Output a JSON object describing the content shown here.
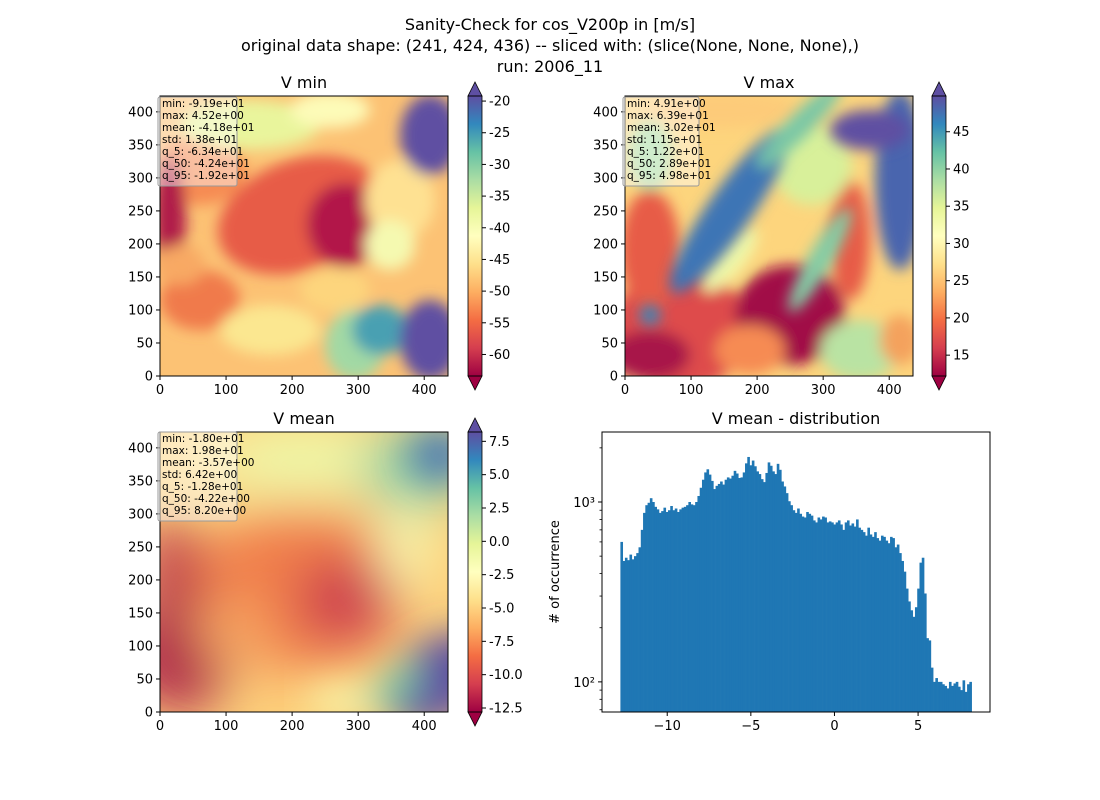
{
  "figure": {
    "title_lines": [
      "Sanity-Check for cos_V200p in [m/s]",
      "original data shape: (241, 424, 436) -- sliced with: (slice(None, None, None),)",
      "run: 2006_11"
    ]
  },
  "colormap": {
    "name": "Spectral",
    "stops": [
      "#9e0142",
      "#d53e4f",
      "#f46d43",
      "#fdae61",
      "#fee08b",
      "#ffffbf",
      "#e6f598",
      "#abdda4",
      "#66c2a5",
      "#3288bd",
      "#5e4fa2"
    ]
  },
  "panels": {
    "vmin": {
      "title": "V min",
      "stats": [
        "min: -9.19e+01",
        "max: 4.52e+00",
        "mean: -4.18e+01",
        "std: 1.38e+01",
        "q_5: -6.34e+01",
        "q_50: -4.24e+01",
        "q_95: -1.92e+01"
      ],
      "x_ticks": [
        "0",
        "100",
        "200",
        "300",
        "400"
      ],
      "y_ticks": [
        "0",
        "50",
        "100",
        "150",
        "200",
        "250",
        "300",
        "350",
        "400"
      ],
      "colorbar_ticks": [
        "-20",
        "-25",
        "-30",
        "-35",
        "-40",
        "-45",
        "-50",
        "-55",
        "-60"
      ]
    },
    "vmax": {
      "title": "V max",
      "stats": [
        "min: 4.91e+00",
        "max: 6.39e+01",
        "mean: 3.02e+01",
        "std: 1.15e+01",
        "q_5: 1.22e+01",
        "q_50: 2.89e+01",
        "q_95: 4.98e+01"
      ],
      "x_ticks": [
        "0",
        "100",
        "200",
        "300",
        "400"
      ],
      "y_ticks": [
        "0",
        "50",
        "100",
        "150",
        "200",
        "250",
        "300",
        "350",
        "400"
      ],
      "colorbar_ticks": [
        "45",
        "40",
        "35",
        "30",
        "25",
        "20",
        "15"
      ]
    },
    "vmean": {
      "title": "V mean",
      "stats": [
        "min: -1.80e+01",
        "max: 1.98e+01",
        "mean: -3.57e+00",
        "std: 6.42e+00",
        "q_5: -1.28e+01",
        "q_50: -4.22e+00",
        "q_95: 8.20e+00"
      ],
      "x_ticks": [
        "0",
        "100",
        "200",
        "300",
        "400"
      ],
      "y_ticks": [
        "0",
        "50",
        "100",
        "150",
        "200",
        "250",
        "300",
        "350",
        "400"
      ],
      "colorbar_ticks": [
        "7.5",
        "5.0",
        "2.5",
        "0.0",
        "-2.5",
        "-5.0",
        "-7.5",
        "-10.0",
        "-12.5"
      ]
    },
    "hist": {
      "title": "V mean - distribution",
      "ylabel": "# of occurrence",
      "x_ticks": [
        "−10",
        "−5",
        "0",
        "5"
      ],
      "y_ticks": [
        "10²",
        "10³"
      ]
    }
  },
  "chart_data": [
    {
      "type": "heatmap",
      "title": "V min",
      "xlim": [
        0,
        436
      ],
      "ylim": [
        0,
        424
      ],
      "color_range": [
        -63.4,
        -19.2
      ],
      "colorbar_ticks": [
        -20,
        -25,
        -30,
        -35,
        -40,
        -45,
        -50,
        -55,
        -60
      ],
      "colormap": "Spectral"
    },
    {
      "type": "heatmap",
      "title": "V max",
      "xlim": [
        0,
        436
      ],
      "ylim": [
        0,
        424
      ],
      "color_range": [
        12.2,
        49.8
      ],
      "colorbar_ticks": [
        45,
        40,
        35,
        30,
        25,
        20,
        15
      ],
      "colormap": "Spectral"
    },
    {
      "type": "heatmap",
      "title": "V mean",
      "xlim": [
        0,
        436
      ],
      "ylim": [
        0,
        424
      ],
      "color_range": [
        -12.8,
        8.2
      ],
      "colorbar_ticks": [
        7.5,
        5.0,
        2.5,
        0.0,
        -2.5,
        -5.0,
        -7.5,
        -10.0,
        -12.5
      ],
      "colormap": "Spectral"
    },
    {
      "type": "bar",
      "title": "V mean - distribution",
      "ylabel": "# of occurrence",
      "yscale": "log",
      "xlim": [
        -13.9,
        9.3
      ],
      "ylim": [
        68,
        2450
      ],
      "x_ticks": [
        -10,
        -5,
        0,
        5
      ],
      "y_ticks": [
        100,
        1000
      ],
      "bin_range": [
        -12.8,
        8.2
      ],
      "color": "#1f77b4",
      "values": [
        600,
        470,
        490,
        475,
        510,
        480,
        500,
        520,
        560,
        700,
        870,
        960,
        990,
        1050,
        1000,
        940,
        910,
        870,
        890,
        930,
        880,
        900,
        950,
        900,
        920,
        880,
        910,
        930,
        940,
        960,
        1000,
        970,
        960,
        1000,
        1080,
        1200,
        1330,
        1460,
        1520,
        1420,
        1310,
        1180,
        1230,
        1260,
        1300,
        1250,
        1330,
        1370,
        1350,
        1400,
        1490,
        1440,
        1360,
        1370,
        1460,
        1640,
        1780,
        1600,
        1700,
        1580,
        1480,
        1430,
        1340,
        1290,
        1450,
        1660,
        1590,
        1480,
        1430,
        1630,
        1510,
        1300,
        1220,
        1120,
        1010,
        960,
        900,
        870,
        920,
        860,
        830,
        820,
        880,
        860,
        840,
        790,
        770,
        820,
        800,
        830,
        820,
        770,
        780,
        770,
        750,
        770,
        790,
        750,
        700,
        770,
        790,
        740,
        760,
        730,
        800,
        720,
        700,
        680,
        650,
        720,
        660,
        640,
        680,
        630,
        610,
        650,
        640,
        610,
        590,
        640,
        630,
        560,
        580,
        520,
        470,
        410,
        330,
        280,
        250,
        230,
        260,
        330,
        460,
        490,
        310,
        175,
        170,
        120,
        100,
        105,
        100,
        100,
        97,
        95,
        92,
        100,
        95,
        98,
        100,
        94,
        90,
        102,
        88,
        97,
        100
      ]
    }
  ]
}
